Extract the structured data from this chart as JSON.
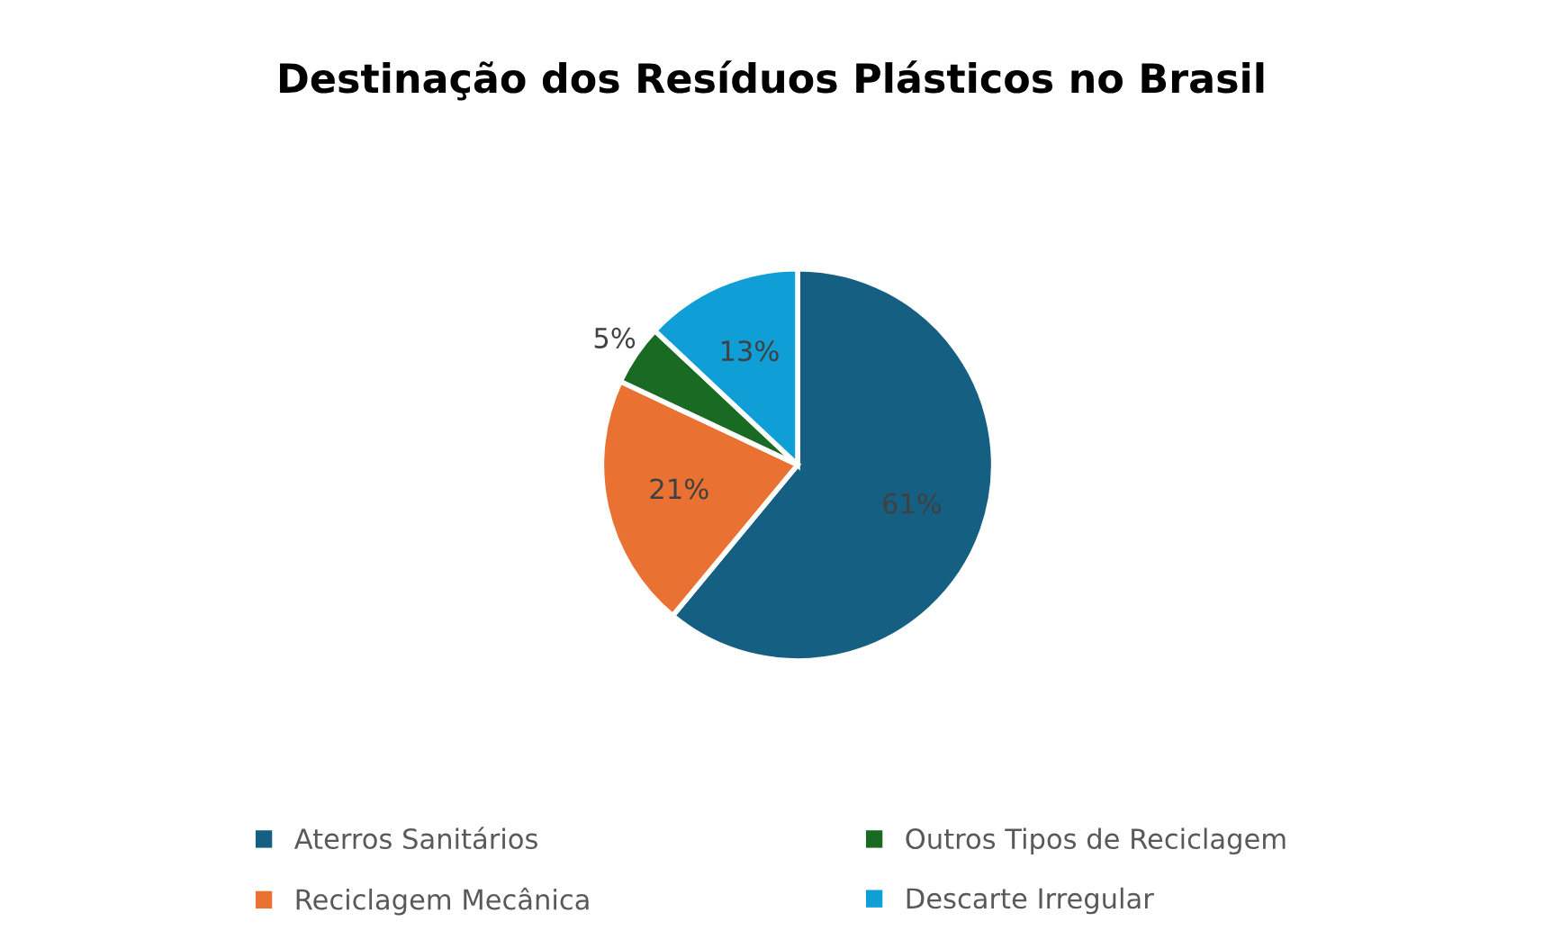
{
  "chart_data": {
    "type": "pie",
    "title": "Destinação dos Resíduos Plásticos no Brasil",
    "categories": [
      "Aterros Sanitários",
      "Reciclagem Mecânica",
      "Outros Tipos de Reciclagem",
      "Descarte Irregular"
    ],
    "values": [
      61,
      21,
      5,
      13
    ],
    "colors": [
      "#156082",
      "#e97132",
      "#196b24",
      "#0f9ed5"
    ],
    "value_labels": [
      "61%",
      "21%",
      "5%",
      "13%"
    ],
    "legend": "bottom"
  }
}
